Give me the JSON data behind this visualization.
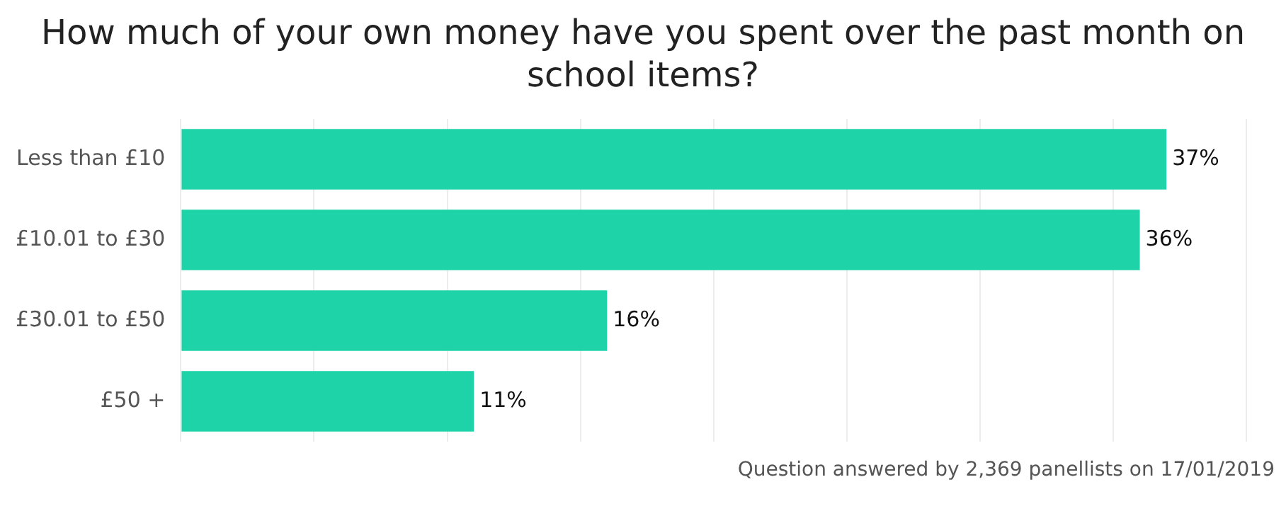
{
  "chart_data": {
    "type": "bar",
    "orientation": "horizontal",
    "title": "How much of your own money have you spent over the past month on school items?",
    "categories": [
      "Less than £10",
      "£10.01 to £30",
      "£30.01 to £50",
      "£50 +"
    ],
    "values": [
      37,
      36,
      16,
      11
    ],
    "color": "#1fd3a8",
    "value_labels": [
      "37%",
      "36%",
      "16%",
      "11%"
    ],
    "xlim": [
      0,
      40
    ],
    "xticks": [
      {
        "value": 0,
        "label": null
      },
      {
        "value": 5,
        "label": null
      },
      {
        "value": 10,
        "label": null
      },
      {
        "value": 15,
        "label": null
      },
      {
        "value": 20,
        "label": null
      },
      {
        "value": 25,
        "label": null
      },
      {
        "value": 30,
        "label": null
      },
      {
        "value": 35,
        "label": null
      },
      {
        "value": 40,
        "label": null
      }
    ],
    "grid": "x",
    "tick_labels": "y",
    "annotations": [
      "Question answered by 2,369 panellists on 17/01/2019"
    ]
  }
}
